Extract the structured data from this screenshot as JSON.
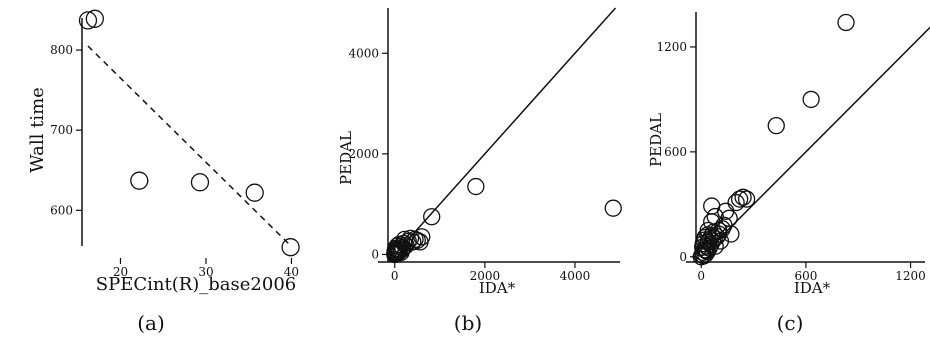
{
  "chart_data": [
    {
      "type": "scatter",
      "panel_label": "(a)",
      "xlabel": "SPECint(R)_base2006",
      "ylabel": "Wall time",
      "xlim": [
        15.5,
        41
      ],
      "ylim": [
        548,
        845
      ],
      "xticks": [
        20,
        30,
        40
      ],
      "yticks": [
        600,
        700,
        800
      ],
      "points": [
        [
          16.2,
          837
        ],
        [
          17.0,
          839
        ],
        [
          22.2,
          637
        ],
        [
          29.3,
          635
        ],
        [
          35.7,
          622
        ],
        [
          39.9,
          554
        ]
      ],
      "fit_line": {
        "style": "dashed",
        "from": [
          16.2,
          805
        ],
        "to": [
          39.9,
          556
        ]
      }
    },
    {
      "type": "scatter",
      "panel_label": "(b)",
      "xlabel": "IDA*",
      "ylabel": "PEDAL",
      "xlim": [
        -150,
        5000
      ],
      "ylim": [
        -150,
        4900
      ],
      "xticks": [
        0,
        2000,
        4000
      ],
      "yticks": [
        0,
        2000,
        4000
      ],
      "points": [
        [
          0,
          0
        ],
        [
          10,
          20
        ],
        [
          20,
          5
        ],
        [
          30,
          40
        ],
        [
          5,
          60
        ],
        [
          40,
          10
        ],
        [
          50,
          80
        ],
        [
          70,
          30
        ],
        [
          80,
          110
        ],
        [
          100,
          60
        ],
        [
          20,
          120
        ],
        [
          120,
          150
        ],
        [
          150,
          90
        ],
        [
          60,
          170
        ],
        [
          180,
          130
        ],
        [
          200,
          220
        ],
        [
          100,
          200
        ],
        [
          250,
          180
        ],
        [
          30,
          90
        ],
        [
          90,
          50
        ],
        [
          140,
          40
        ],
        [
          300,
          260
        ],
        [
          220,
          300
        ],
        [
          350,
          320
        ],
        [
          400,
          250
        ],
        [
          450,
          300
        ],
        [
          500,
          280
        ],
        [
          560,
          250
        ],
        [
          600,
          350
        ],
        [
          820,
          750
        ],
        [
          1800,
          1350
        ],
        [
          4850,
          920
        ]
      ],
      "reference_line": {
        "style": "solid",
        "from": [
          0,
          0
        ],
        "to": [
          4900,
          4900
        ]
      }
    },
    {
      "type": "scatter",
      "panel_label": "(c)",
      "xlabel": "IDA*",
      "ylabel": "PEDAL",
      "xlim": [
        -30,
        1300
      ],
      "ylim": [
        -30,
        1400
      ],
      "xticks": [
        0,
        600,
        1200
      ],
      "yticks": [
        0,
        600,
        1200
      ],
      "points": [
        [
          0,
          0
        ],
        [
          5,
          10
        ],
        [
          10,
          25
        ],
        [
          15,
          5
        ],
        [
          20,
          40
        ],
        [
          25,
          15
        ],
        [
          8,
          55
        ],
        [
          30,
          60
        ],
        [
          12,
          75
        ],
        [
          35,
          30
        ],
        [
          40,
          85
        ],
        [
          18,
          95
        ],
        [
          45,
          50
        ],
        [
          50,
          100
        ],
        [
          22,
          110
        ],
        [
          55,
          70
        ],
        [
          60,
          120
        ],
        [
          28,
          35
        ],
        [
          65,
          90
        ],
        [
          70,
          140
        ],
        [
          75,
          105
        ],
        [
          38,
          125
        ],
        [
          80,
          60
        ],
        [
          90,
          115
        ],
        [
          100,
          130
        ],
        [
          110,
          90
        ],
        [
          120,
          160
        ],
        [
          130,
          180
        ],
        [
          60,
          200
        ],
        [
          80,
          230
        ],
        [
          140,
          260
        ],
        [
          160,
          220
        ],
        [
          170,
          130
        ],
        [
          200,
          310
        ],
        [
          220,
          330
        ],
        [
          240,
          340
        ],
        [
          260,
          330
        ],
        [
          60,
          290
        ],
        [
          100,
          150
        ],
        [
          40,
          150
        ],
        [
          430,
          750
        ],
        [
          630,
          900
        ],
        [
          830,
          1340
        ]
      ],
      "reference_line": {
        "style": "solid",
        "from": [
          0,
          0
        ],
        "to": [
          1330,
          1330
        ]
      }
    }
  ]
}
